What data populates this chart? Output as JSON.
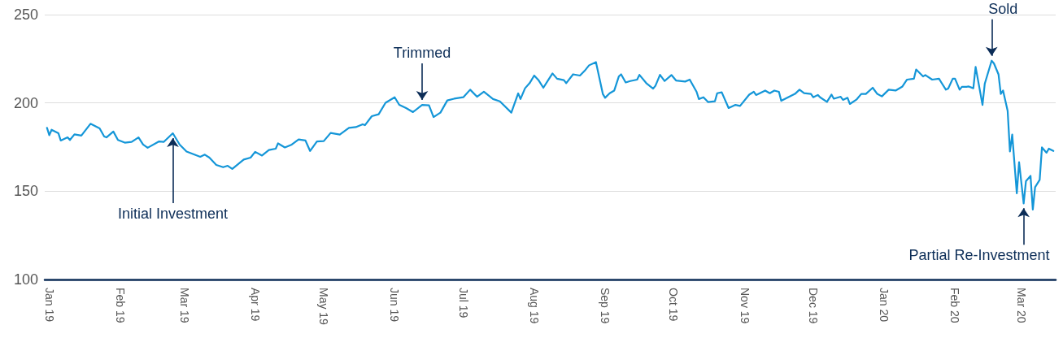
{
  "chart_data": {
    "type": "line",
    "xlim": [
      "2018-12-30",
      "2020-03-16"
    ],
    "ylim": [
      100,
      250
    ],
    "yticks": [
      100,
      150,
      200,
      250
    ],
    "xticks": [
      {
        "value": "2019-01-01",
        "label": "Jan 19"
      },
      {
        "value": "2019-02-01",
        "label": "Feb 19"
      },
      {
        "value": "2019-03-01",
        "label": "Mar 19"
      },
      {
        "value": "2019-04-01",
        "label": "Apr 19"
      },
      {
        "value": "2019-05-01",
        "label": "May 19"
      },
      {
        "value": "2019-06-01",
        "label": "Jun 19"
      },
      {
        "value": "2019-07-01",
        "label": "Jul 19"
      },
      {
        "value": "2019-08-01",
        "label": "Aug 19"
      },
      {
        "value": "2019-09-01",
        "label": "Sep 19"
      },
      {
        "value": "2019-10-01",
        "label": "Oct 19"
      },
      {
        "value": "2019-11-01",
        "label": "Nov 19"
      },
      {
        "value": "2019-12-01",
        "label": "Dec 19"
      },
      {
        "value": "2020-01-01",
        "label": "Jan 20"
      },
      {
        "value": "2020-02-01",
        "label": "Feb 20"
      },
      {
        "value": "2020-03-01",
        "label": "Mar 20"
      }
    ],
    "grid": "y",
    "marker": "none",
    "line_style": "solid",
    "annotations": [
      {
        "text": "Initial Investment",
        "x": "2019-02-24",
        "y": 182.8
      },
      {
        "text": "Trimmed",
        "x": "2019-06-13",
        "y": 198.9
      },
      {
        "text": "Sold",
        "x": "2020-02-17",
        "y": 223.9
      },
      {
        "text": "Partial Re-Investment",
        "x": "2020-03-02",
        "y": 143.1
      }
    ],
    "series": [
      {
        "color": "#1496d8",
        "x": [
          "2018-12-31",
          "2019-01-01",
          "2019-01-02",
          "2019-01-05",
          "2019-01-06",
          "2019-01-09",
          "2019-01-10",
          "2019-01-12",
          "2019-01-15",
          "2019-01-19",
          "2019-01-23",
          "2019-01-25",
          "2019-01-26",
          "2019-01-29",
          "2019-01-31",
          "2019-02-03",
          "2019-02-06",
          "2019-02-09",
          "2019-02-11",
          "2019-02-13",
          "2019-02-18",
          "2019-02-20",
          "2019-02-24",
          "2019-02-27",
          "2019-03-02",
          "2019-03-08",
          "2019-03-10",
          "2019-03-12",
          "2019-03-15",
          "2019-03-18",
          "2019-03-20",
          "2019-03-22",
          "2019-03-27",
          "2019-03-30",
          "2019-04-01",
          "2019-04-04",
          "2019-04-07",
          "2019-04-10",
          "2019-04-11",
          "2019-04-14",
          "2019-04-17",
          "2019-04-20",
          "2019-04-23",
          "2019-04-25",
          "2019-04-28",
          "2019-05-01",
          "2019-05-04",
          "2019-05-08",
          "2019-05-12",
          "2019-05-15",
          "2019-05-18",
          "2019-05-19",
          "2019-05-22",
          "2019-05-25",
          "2019-05-28",
          "2019-06-01",
          "2019-06-03",
          "2019-06-06",
          "2019-06-09",
          "2019-06-13",
          "2019-06-16",
          "2019-06-18",
          "2019-06-21",
          "2019-06-24",
          "2019-06-27",
          "2019-07-01",
          "2019-07-04",
          "2019-07-07",
          "2019-07-10",
          "2019-07-14",
          "2019-07-17",
          "2019-07-22",
          "2019-07-25",
          "2019-07-26",
          "2019-07-28",
          "2019-07-30",
          "2019-08-01",
          "2019-08-03",
          "2019-08-05",
          "2019-08-07",
          "2019-08-09",
          "2019-08-11",
          "2019-08-14",
          "2019-08-15",
          "2019-08-18",
          "2019-08-21",
          "2019-08-23",
          "2019-08-25",
          "2019-08-28",
          "2019-08-31",
          "2019-09-01",
          "2019-09-03",
          "2019-09-05",
          "2019-09-07",
          "2019-09-08",
          "2019-09-10",
          "2019-09-12",
          "2019-09-15",
          "2019-09-16",
          "2019-09-19",
          "2019-09-22",
          "2019-09-23",
          "2019-09-25",
          "2019-09-27",
          "2019-09-30",
          "2019-10-02",
          "2019-10-06",
          "2019-10-08",
          "2019-10-11",
          "2019-10-12",
          "2019-10-14",
          "2019-10-16",
          "2019-10-19",
          "2019-10-20",
          "2019-10-22",
          "2019-10-25",
          "2019-10-28",
          "2019-10-30",
          "2019-11-03",
          "2019-11-05",
          "2019-11-06",
          "2019-11-10",
          "2019-11-12",
          "2019-11-14",
          "2019-11-16",
          "2019-11-17",
          "2019-11-20",
          "2019-11-23",
          "2019-11-25",
          "2019-11-27",
          "2019-11-30",
          "2019-12-01",
          "2019-12-03",
          "2019-12-04",
          "2019-12-07",
          "2019-12-09",
          "2019-12-10",
          "2019-12-13",
          "2019-12-14",
          "2019-12-16",
          "2019-12-17",
          "2019-12-20",
          "2019-12-22",
          "2019-12-24",
          "2019-12-27",
          "2019-12-29",
          "2019-12-31",
          "2020-01-03",
          "2020-01-06",
          "2020-01-09",
          "2020-01-11",
          "2020-01-14",
          "2020-01-15",
          "2020-01-18",
          "2020-01-19",
          "2020-01-22",
          "2020-01-25",
          "2020-01-26",
          "2020-01-28",
          "2020-01-29",
          "2020-01-31",
          "2020-02-01",
          "2020-02-03",
          "2020-02-04",
          "2020-02-06",
          "2020-02-07",
          "2020-02-09",
          "2020-02-10",
          "2020-02-13",
          "2020-02-14",
          "2020-02-17",
          "2020-02-18",
          "2020-02-20",
          "2020-02-21",
          "2020-02-22",
          "2020-02-24",
          "2020-02-25",
          "2020-02-26",
          "2020-02-28",
          "2020-02-29",
          "2020-03-02",
          "2020-03-03",
          "2020-03-05",
          "2020-03-06",
          "2020-03-07",
          "2020-03-09",
          "2020-03-10",
          "2020-03-12",
          "2020-03-13",
          "2020-03-15"
        ],
        "values": [
          185.9,
          181.7,
          184.8,
          182.8,
          178.7,
          180.5,
          179,
          182.2,
          181.5,
          188.2,
          185.6,
          181,
          180.5,
          183.8,
          179,
          177.5,
          177.9,
          180.5,
          176.4,
          174.6,
          178.2,
          177.9,
          182.8,
          176.4,
          172.5,
          169.5,
          170.7,
          169,
          164.9,
          163.6,
          164.4,
          162.6,
          167.9,
          169,
          172.3,
          170.2,
          173.3,
          174.1,
          177.1,
          174.8,
          176.4,
          179.3,
          178.7,
          172.8,
          178.2,
          178.4,
          183,
          182.1,
          185.9,
          186.3,
          187.9,
          187.4,
          192.5,
          193.6,
          200.1,
          203.2,
          198.9,
          197.1,
          194.8,
          198.9,
          198.6,
          192,
          194.5,
          201.4,
          202.4,
          203.2,
          207.5,
          203.5,
          206.3,
          202.2,
          200.9,
          194.5,
          205.4,
          202.2,
          208.3,
          211.2,
          215.5,
          212.7,
          208.6,
          212.7,
          216.7,
          213.7,
          212.9,
          211.2,
          216.2,
          215.5,
          218.1,
          221.3,
          223.1,
          205.1,
          202.9,
          205.5,
          207,
          215,
          216.2,
          211.6,
          212.4,
          213.2,
          215.9,
          211.2,
          208.1,
          209.7,
          215.9,
          212.4,
          215.8,
          212.7,
          212.1,
          213.2,
          206.3,
          202.2,
          203.2,
          200.5,
          200.9,
          205.5,
          206,
          197.1,
          198.9,
          198.3,
          204.7,
          206.3,
          204.5,
          207,
          205.5,
          207,
          206.3,
          201.2,
          203.2,
          205.1,
          207.5,
          205.5,
          205.1,
          203.2,
          204.5,
          203.2,
          200.6,
          204.7,
          202.4,
          203.5,
          201.7,
          202.9,
          199.4,
          202,
          205.1,
          205.1,
          208.6,
          205.1,
          203.7,
          207.5,
          207,
          209.3,
          213.2,
          213.7,
          218.9,
          215,
          215.8,
          213.2,
          213.7,
          211.6,
          207.5,
          208.1,
          213.7,
          213.7,
          207.5,
          209.1,
          209.1,
          209.3,
          208.3,
          220.4,
          198.9,
          210.9,
          223.9,
          222.4,
          216.2,
          205.1,
          207,
          195.5,
          172.5,
          182.1,
          148.8,
          166.4,
          143.1,
          155.7,
          158.7,
          139.6,
          152.3,
          156.4,
          174.8,
          171.8,
          174.1,
          172.8
        ]
      }
    ]
  }
}
